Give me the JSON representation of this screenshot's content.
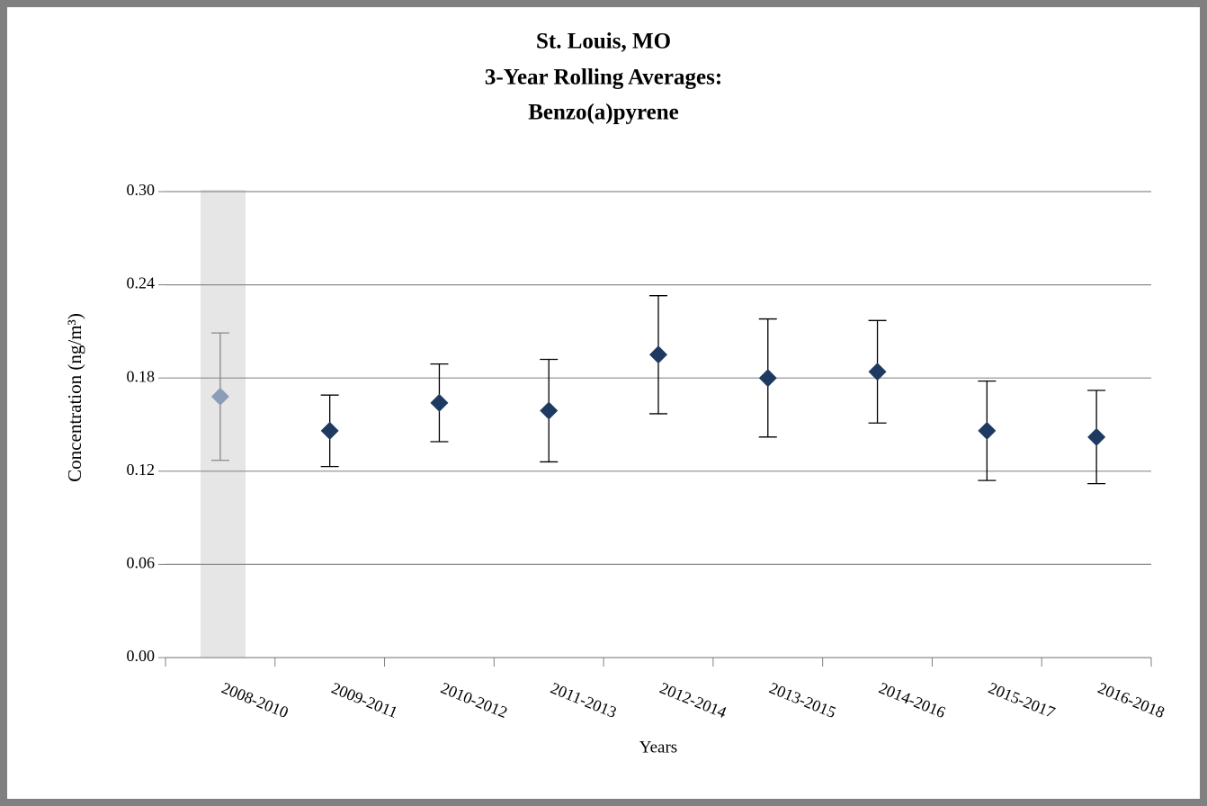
{
  "chart_data": {
    "type": "errorbar",
    "title": [
      "St. Louis, MO",
      "3-Year Rolling Averages:",
      "Benzo(a)pyrene"
    ],
    "x_label": "Years",
    "y_label": "Concentration (ng/m³)",
    "categories": [
      "2008-2010",
      "2009-2011",
      "2010-2012",
      "2011-2013",
      "2012-2014",
      "2013-2015",
      "2014-2016",
      "2015-2017",
      "2016-2018"
    ],
    "series": [
      {
        "color": "#1f3a60",
        "values": [
          0.168,
          0.146,
          0.164,
          0.159,
          0.195,
          0.18,
          0.184,
          0.146,
          0.142
        ],
        "errors": [
          0.041,
          0.023,
          0.025,
          0.033,
          0.038,
          0.038,
          0.033,
          0.032,
          0.03
        ]
      }
    ],
    "highlight_indices": [
      0
    ],
    "highlight_color": "#e6e6e6",
    "highlight_point_color": "#8c9db6",
    "highlight_bar_color": "#888888",
    "ylim": [
      0,
      0.3
    ],
    "yticks": [
      {
        "value": 0,
        "label": "0.00"
      },
      0.06,
      0.12,
      0.18,
      0.24,
      {
        "value": 0.3,
        "label": "0.30"
      }
    ],
    "grid": true
  }
}
